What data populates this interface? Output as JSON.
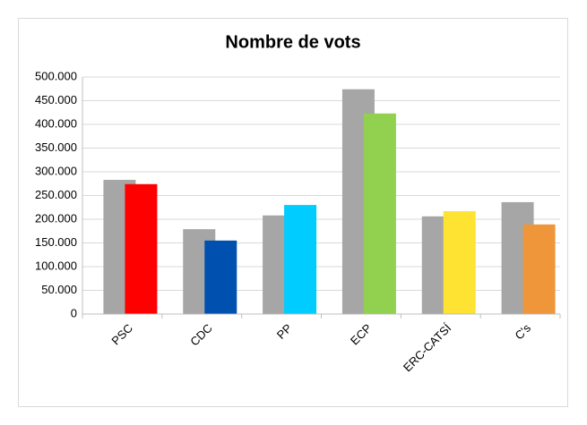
{
  "chart_data": {
    "type": "bar",
    "title": "Nombre de vots",
    "categories": [
      "PSC",
      "CDC",
      "PP",
      "ECP",
      "ERC-CATSÍ",
      "C's"
    ],
    "series": [
      {
        "color": "#a6a6a6",
        "values": [
          283000,
          179000,
          208000,
          474000,
          206000,
          236000
        ]
      },
      {
        "colors": [
          "#ff0000",
          "#0050b0",
          "#00ccff",
          "#92d050",
          "#ffe333",
          "#f0963a"
        ],
        "values": [
          274000,
          155000,
          230000,
          423000,
          217000,
          189000
        ]
      }
    ],
    "ylim": [
      0,
      500000
    ],
    "yticks": [
      0,
      {
        "value": 50000,
        "label": "50.000"
      },
      {
        "value": 100000,
        "label": "100.000"
      },
      {
        "value": 150000,
        "label": "150.000"
      },
      {
        "value": 200000,
        "label": "200.000"
      },
      {
        "value": 250000,
        "label": "250.000"
      },
      {
        "value": 300000,
        "label": "300.000"
      },
      {
        "value": 350000,
        "label": "350.000"
      },
      {
        "value": 400000,
        "label": "400.000"
      },
      {
        "value": 450000,
        "label": "450.000"
      },
      {
        "value": 500000,
        "label": "500.000"
      }
    ],
    "grid": true
  }
}
